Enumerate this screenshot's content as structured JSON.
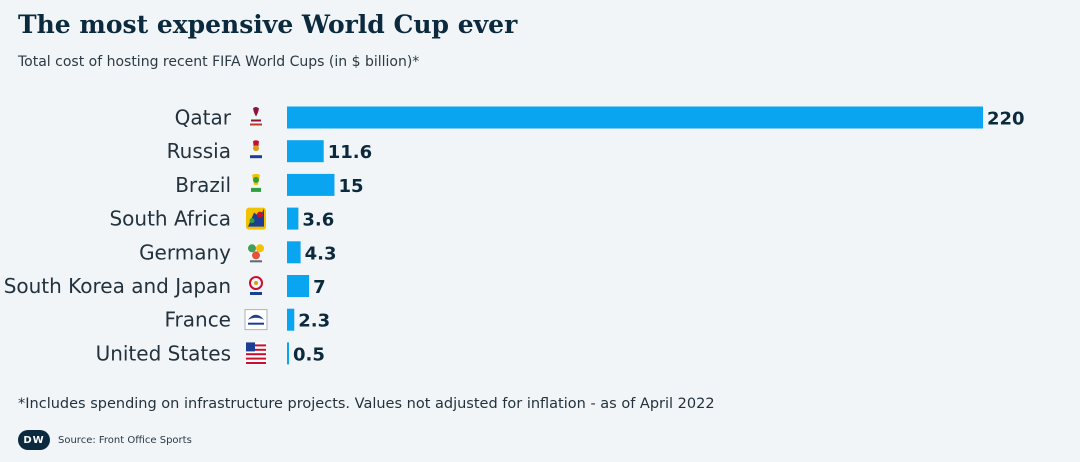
{
  "title": "The most expensive World Cup ever",
  "subtitle": "Total cost of hosting recent FIFA World Cups (in $ billion)*",
  "footnote": "*Includes spending on infrastructure projects. Values not adjusted for inflation - as of April 2022",
  "source": "Source: Front Office Sports",
  "logo_text": "DW",
  "colors": {
    "bar": "#0aa5f0",
    "text": "#0b2a3d",
    "background": "#f2f5f8"
  },
  "chart_data": {
    "type": "bar",
    "orientation": "horizontal",
    "title": "The most expensive World Cup ever",
    "subtitle": "Total cost of hosting recent FIFA World Cups (in $ billion)*",
    "categories": [
      "Qatar",
      "Russia",
      "Brazil",
      "South Africa",
      "Germany",
      "South Korea and Japan",
      "France",
      "United States"
    ],
    "values": [
      220,
      11.6,
      15,
      3.6,
      4.3,
      7,
      2.3,
      0.5
    ],
    "value_labels": [
      "220",
      "11.6",
      "15",
      "3.6",
      "4.3",
      "7",
      "2.3",
      "0.5"
    ],
    "icons": [
      "qatar-2022-emblem-icon",
      "russia-2018-emblem-icon",
      "brazil-2014-emblem-icon",
      "south-africa-2010-emblem-icon",
      "germany-2006-emblem-icon",
      "korea-japan-2002-emblem-icon",
      "france-1998-emblem-icon",
      "usa-1994-emblem-icon"
    ],
    "xlim": [
      0,
      220
    ],
    "grid": false,
    "legend": "none"
  }
}
